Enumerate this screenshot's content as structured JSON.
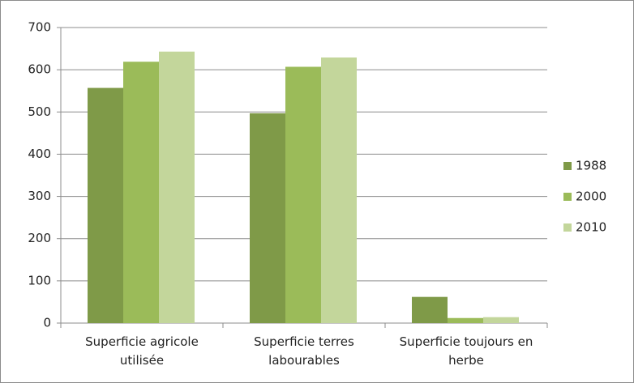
{
  "chart_data": {
    "type": "bar",
    "categories": [
      "Superficie agricole utilisée",
      "Superficie terres labourables",
      "Superficie toujours en herbe"
    ],
    "series": [
      {
        "name": "1988",
        "color": "#7f9a48",
        "values": [
          557,
          497,
          62
        ]
      },
      {
        "name": "2000",
        "color": "#9bbb59",
        "values": [
          619,
          607,
          12
        ]
      },
      {
        "name": "2010",
        "color": "#c3d69b",
        "values": [
          643,
          629,
          14
        ]
      }
    ],
    "ylim": [
      0,
      700
    ],
    "yticks": [
      0,
      100,
      200,
      300,
      400,
      500,
      600,
      700
    ],
    "grid": true,
    "legend": "right"
  }
}
